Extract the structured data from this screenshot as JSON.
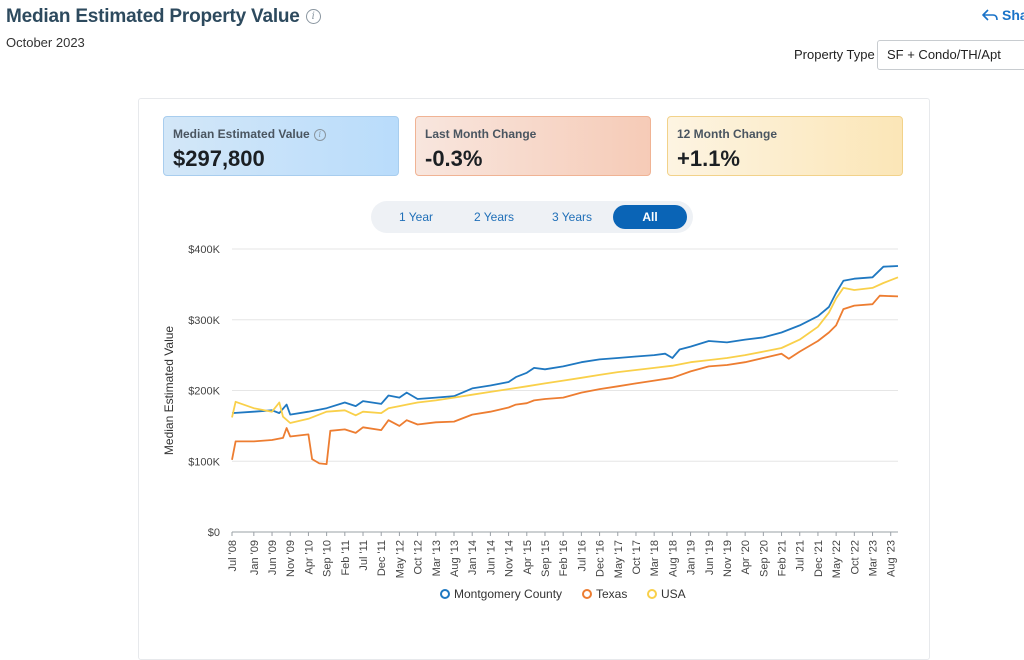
{
  "header": {
    "title": "Median Estimated Property Value",
    "subtitle": "October 2023",
    "share_label": "Sha",
    "property_type_label": "Property Type",
    "property_type_value": "SF + Condo/TH/Apt"
  },
  "kpis": [
    {
      "label": "Median Estimated Value",
      "value": "$297,800"
    },
    {
      "label": "Last Month Change",
      "value": "-0.3%"
    },
    {
      "label": "12 Month Change",
      "value": "+1.1%"
    }
  ],
  "range_buttons": [
    {
      "label": "1 Year",
      "active": false
    },
    {
      "label": "2 Years",
      "active": false
    },
    {
      "label": "3 Years",
      "active": false
    },
    {
      "label": "All",
      "active": true
    }
  ],
  "colors": {
    "montgomery": "#1f78c1",
    "texas": "#ed7d31",
    "usa": "#f9d04a",
    "grid": "#e6e6e6"
  },
  "chart_data": {
    "type": "line",
    "ylabel": "Median Estimated Value",
    "xlabel": "",
    "ylim": [
      0,
      400000
    ],
    "y_ticks": [
      0,
      100000,
      200000,
      300000,
      400000
    ],
    "y_tick_labels": [
      "$0",
      "$100K",
      "$200K",
      "$300K",
      "$400K"
    ],
    "x_range": [
      "Jul '08",
      "Oct '23"
    ],
    "x_tick_labels": [
      "Jul '08",
      "Jan '09",
      "Jun '09",
      "Nov '09",
      "Apr '10",
      "Sep '10",
      "Feb '11",
      "Jul '11",
      "Dec '11",
      "May '12",
      "Oct '12",
      "Mar '13",
      "Aug '13",
      "Jan '14",
      "Jun '14",
      "Nov '14",
      "Apr '15",
      "Sep '15",
      "Feb '16",
      "Jul '16",
      "Dec '16",
      "May '17",
      "Oct '17",
      "Mar '18",
      "Aug '18",
      "Jan '19",
      "Jun '19",
      "Nov '19",
      "Apr '20",
      "Sep '20",
      "Feb '21",
      "Jul '21",
      "Dec '21",
      "May '22",
      "Oct '22",
      "Mar '23",
      "Aug '23"
    ],
    "grid": true,
    "legend_position": "bottom",
    "series": [
      {
        "name": "Montgomery County",
        "values": [
          [
            "2008-07",
            168000
          ],
          [
            "2009-01",
            170000
          ],
          [
            "2009-06",
            172000
          ],
          [
            "2009-08",
            168000
          ],
          [
            "2009-10",
            180000
          ],
          [
            "2009-11",
            166000
          ],
          [
            "2010-04",
            170000
          ],
          [
            "2010-09",
            175000
          ],
          [
            "2011-02",
            183000
          ],
          [
            "2011-05",
            178000
          ],
          [
            "2011-07",
            185000
          ],
          [
            "2011-12",
            181000
          ],
          [
            "2012-02",
            193000
          ],
          [
            "2012-05",
            190000
          ],
          [
            "2012-07",
            197000
          ],
          [
            "2012-10",
            188000
          ],
          [
            "2013-03",
            190000
          ],
          [
            "2013-08",
            192000
          ],
          [
            "2014-01",
            203000
          ],
          [
            "2014-06",
            207000
          ],
          [
            "2014-11",
            212000
          ],
          [
            "2015-01",
            219000
          ],
          [
            "2015-04",
            225000
          ],
          [
            "2015-06",
            232000
          ],
          [
            "2015-09",
            230000
          ],
          [
            "2016-02",
            234000
          ],
          [
            "2016-07",
            240000
          ],
          [
            "2016-12",
            244000
          ],
          [
            "2017-05",
            246000
          ],
          [
            "2017-10",
            248000
          ],
          [
            "2018-03",
            250000
          ],
          [
            "2018-06",
            252000
          ],
          [
            "2018-08",
            246000
          ],
          [
            "2018-10",
            258000
          ],
          [
            "2019-01",
            262000
          ],
          [
            "2019-06",
            270000
          ],
          [
            "2019-11",
            268000
          ],
          [
            "2020-04",
            272000
          ],
          [
            "2020-09",
            275000
          ],
          [
            "2021-02",
            282000
          ],
          [
            "2021-07",
            292000
          ],
          [
            "2021-12",
            305000
          ],
          [
            "2022-03",
            318000
          ],
          [
            "2022-05",
            338000
          ],
          [
            "2022-07",
            355000
          ],
          [
            "2022-10",
            358000
          ],
          [
            "2023-03",
            360000
          ],
          [
            "2023-06",
            375000
          ],
          [
            "2023-10",
            376000
          ]
        ]
      },
      {
        "name": "Texas",
        "values": [
          [
            "2008-07",
            102000
          ],
          [
            "2008-08",
            128000
          ],
          [
            "2009-01",
            128000
          ],
          [
            "2009-06",
            130000
          ],
          [
            "2009-09",
            133000
          ],
          [
            "2009-10",
            147000
          ],
          [
            "2009-11",
            135000
          ],
          [
            "2010-04",
            138000
          ],
          [
            "2010-05",
            103000
          ],
          [
            "2010-07",
            97000
          ],
          [
            "2010-09",
            96000
          ],
          [
            "2010-10",
            143000
          ],
          [
            "2011-02",
            145000
          ],
          [
            "2011-05",
            140000
          ],
          [
            "2011-07",
            148000
          ],
          [
            "2011-12",
            144000
          ],
          [
            "2012-02",
            158000
          ],
          [
            "2012-05",
            150000
          ],
          [
            "2012-07",
            158000
          ],
          [
            "2012-10",
            152000
          ],
          [
            "2013-03",
            155000
          ],
          [
            "2013-08",
            156000
          ],
          [
            "2014-01",
            166000
          ],
          [
            "2014-06",
            170000
          ],
          [
            "2014-11",
            176000
          ],
          [
            "2015-01",
            180000
          ],
          [
            "2015-04",
            182000
          ],
          [
            "2015-06",
            186000
          ],
          [
            "2015-09",
            188000
          ],
          [
            "2016-02",
            190000
          ],
          [
            "2016-07",
            197000
          ],
          [
            "2016-12",
            202000
          ],
          [
            "2017-05",
            206000
          ],
          [
            "2017-10",
            210000
          ],
          [
            "2018-03",
            214000
          ],
          [
            "2018-08",
            218000
          ],
          [
            "2019-01",
            227000
          ],
          [
            "2019-06",
            234000
          ],
          [
            "2019-11",
            236000
          ],
          [
            "2020-04",
            240000
          ],
          [
            "2020-09",
            246000
          ],
          [
            "2021-02",
            252000
          ],
          [
            "2021-04",
            245000
          ],
          [
            "2021-07",
            255000
          ],
          [
            "2021-12",
            270000
          ],
          [
            "2022-03",
            282000
          ],
          [
            "2022-05",
            292000
          ],
          [
            "2022-07",
            315000
          ],
          [
            "2022-10",
            320000
          ],
          [
            "2023-03",
            322000
          ],
          [
            "2023-05",
            334000
          ],
          [
            "2023-10",
            333000
          ]
        ]
      },
      {
        "name": "USA",
        "values": [
          [
            "2008-07",
            162000
          ],
          [
            "2008-08",
            184000
          ],
          [
            "2009-01",
            175000
          ],
          [
            "2009-06",
            170000
          ],
          [
            "2009-08",
            183000
          ],
          [
            "2009-09",
            163000
          ],
          [
            "2009-11",
            154000
          ],
          [
            "2010-04",
            160000
          ],
          [
            "2010-09",
            170000
          ],
          [
            "2011-02",
            172000
          ],
          [
            "2011-05",
            165000
          ],
          [
            "2011-07",
            170000
          ],
          [
            "2011-12",
            168000
          ],
          [
            "2012-02",
            175000
          ],
          [
            "2012-05",
            178000
          ],
          [
            "2012-07",
            180000
          ],
          [
            "2012-10",
            183000
          ],
          [
            "2013-03",
            186000
          ],
          [
            "2013-08",
            190000
          ],
          [
            "2014-01",
            194000
          ],
          [
            "2014-06",
            198000
          ],
          [
            "2014-11",
            202000
          ],
          [
            "2015-04",
            206000
          ],
          [
            "2015-09",
            210000
          ],
          [
            "2016-02",
            214000
          ],
          [
            "2016-07",
            218000
          ],
          [
            "2016-12",
            222000
          ],
          [
            "2017-05",
            226000
          ],
          [
            "2017-10",
            229000
          ],
          [
            "2018-03",
            232000
          ],
          [
            "2018-08",
            235000
          ],
          [
            "2019-01",
            240000
          ],
          [
            "2019-06",
            243000
          ],
          [
            "2019-11",
            246000
          ],
          [
            "2020-04",
            250000
          ],
          [
            "2020-09",
            255000
          ],
          [
            "2021-02",
            260000
          ],
          [
            "2021-07",
            272000
          ],
          [
            "2021-12",
            290000
          ],
          [
            "2022-03",
            310000
          ],
          [
            "2022-05",
            330000
          ],
          [
            "2022-07",
            345000
          ],
          [
            "2022-10",
            342000
          ],
          [
            "2023-03",
            345000
          ],
          [
            "2023-06",
            352000
          ],
          [
            "2023-10",
            360000
          ]
        ]
      }
    ]
  }
}
